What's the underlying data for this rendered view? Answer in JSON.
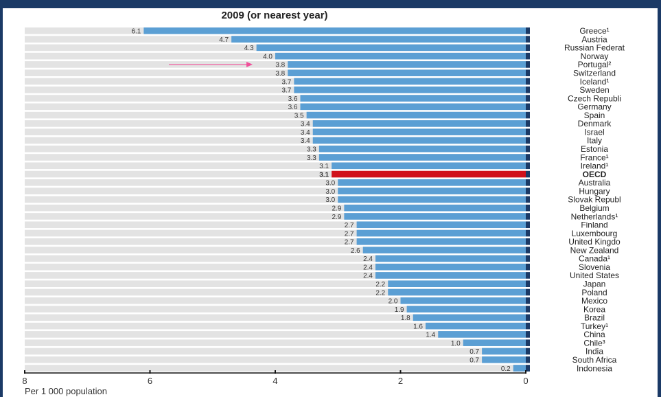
{
  "header": {
    "subtitle": "2009 (or nearest year)"
  },
  "chart_data": {
    "type": "bar",
    "orientation": "horizontal",
    "x_direction": "reversed",
    "xlim": [
      8,
      0
    ],
    "xticks": [
      "8",
      "6",
      "4",
      "2",
      "0"
    ],
    "xticks_values": [
      8,
      6,
      4,
      2,
      0
    ],
    "xlabel": "Per 1 000 population",
    "categories": [
      "Greece¹",
      "Austria",
      "Russian Federat",
      "Norway",
      "Portugal²",
      "Switzerland",
      "Iceland¹",
      "Sweden",
      "Czech Republi",
      "Germany",
      "Spain",
      "Denmark",
      "Israel",
      "Italy",
      "Estonia",
      "France¹",
      "Ireland¹",
      "OECD",
      "Australia",
      "Hungary",
      "Slovak Republ",
      "Belgium",
      "Netherlands¹",
      "Finland",
      "Luxembourg",
      "United Kingdo",
      "New Zealand",
      "Canada¹",
      "Slovenia",
      "United States",
      "Japan",
      "Poland",
      "Mexico",
      "Korea",
      "Brazil",
      "Turkey¹",
      "China",
      "Chile³",
      "India",
      "South Africa",
      "Indonesia"
    ],
    "values": [
      6.1,
      4.7,
      4.3,
      4.0,
      3.8,
      3.8,
      3.7,
      3.7,
      3.6,
      3.6,
      3.5,
      3.4,
      3.4,
      3.4,
      3.3,
      3.3,
      3.1,
      3.1,
      3.0,
      3.0,
      3.0,
      2.9,
      2.9,
      2.7,
      2.7,
      2.7,
      2.6,
      2.4,
      2.4,
      2.4,
      2.2,
      2.2,
      2.0,
      1.9,
      1.8,
      1.6,
      1.4,
      1.0,
      0.7,
      0.7,
      0.2
    ],
    "value_labels": [
      "6.1",
      "4.7",
      "4.3",
      "4.0",
      "3.8",
      "3.8",
      "3.7",
      "3.7",
      "3.6",
      "3.6",
      "3.5",
      "3.4",
      "3.4",
      "3.4",
      "3.3",
      "3.3",
      "3.1",
      "3.1",
      "3.0",
      "3.0",
      "3.0",
      "2.9",
      "2.9",
      "2.7",
      "2.7",
      "2.7",
      "2.6",
      "2.4",
      "2.4",
      "2.4",
      "2.2",
      "2.2",
      "2.0",
      "1.9",
      "1.8",
      "1.6",
      "1.4",
      "1.0",
      "0.7",
      "0.7",
      "0.2"
    ],
    "highlight_category": "OECD",
    "arrow_pointing_to": "Portugal²",
    "colors": {
      "bar": "#5b9fd4",
      "highlight": "#d0111b",
      "track": "#e3e3e3",
      "arrow": "#f0509a",
      "frame": "#1b3a66"
    },
    "grid": false,
    "legend": "none"
  }
}
